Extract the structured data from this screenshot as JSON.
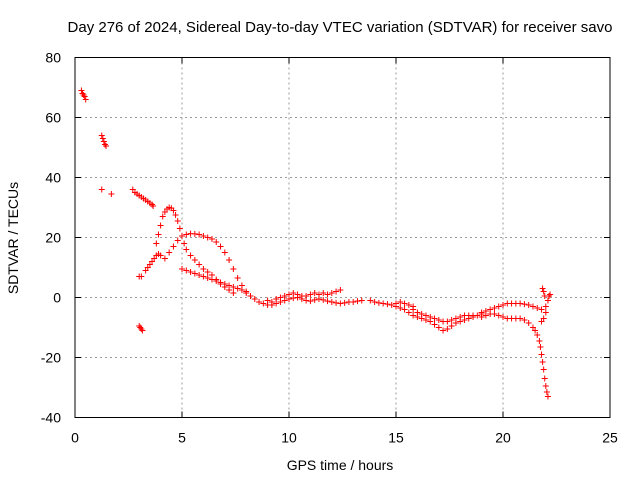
{
  "chart_data": {
    "type": "scatter",
    "title": "Day 276 of 2024, Sidereal Day-to-day VTEC variation (SDTVAR) for receiver savo",
    "xlabel": "GPS time / hours",
    "ylabel": "SDTVAR / TECUs",
    "xlim": [
      0,
      25
    ],
    "ylim": [
      -40,
      80
    ],
    "xticks": [
      0,
      5,
      10,
      15,
      20,
      25
    ],
    "yticks": [
      -40,
      -20,
      0,
      20,
      40,
      60,
      80
    ],
    "xtick_labels": [
      "0",
      "5",
      "10",
      "15",
      "20",
      "25"
    ],
    "ytick_labels": [
      "-40",
      "-20",
      "0",
      "20",
      "40",
      "60",
      "80"
    ],
    "grid": true,
    "marker": "+",
    "color": "#ff0000",
    "series": [
      {
        "name": "SDTVAR",
        "points": [
          [
            0.3,
            69.0
          ],
          [
            0.35,
            68.0
          ],
          [
            0.4,
            67.5
          ],
          [
            0.45,
            67.0
          ],
          [
            0.5,
            66.0
          ],
          [
            1.25,
            54.0
          ],
          [
            1.3,
            53.0
          ],
          [
            1.35,
            52.0
          ],
          [
            1.4,
            51.0
          ],
          [
            1.45,
            50.5
          ],
          [
            1.25,
            36.0
          ],
          [
            1.7,
            34.5
          ],
          [
            2.7,
            36.0
          ],
          [
            2.8,
            35.0
          ],
          [
            2.9,
            34.5
          ],
          [
            3.0,
            34.0
          ],
          [
            3.1,
            33.5
          ],
          [
            3.2,
            33.0
          ],
          [
            3.3,
            32.5
          ],
          [
            3.4,
            32.0
          ],
          [
            3.5,
            31.5
          ],
          [
            3.6,
            31.0
          ],
          [
            3.65,
            30.5
          ],
          [
            3.0,
            7.0
          ],
          [
            3.1,
            7.0
          ],
          [
            3.0,
            -9.5
          ],
          [
            3.05,
            -10.0
          ],
          [
            3.1,
            -10.5
          ],
          [
            3.15,
            -11.0
          ],
          [
            3.3,
            9.0
          ],
          [
            3.4,
            10.0
          ],
          [
            3.5,
            11.0
          ],
          [
            3.6,
            12.0
          ],
          [
            3.7,
            13.0
          ],
          [
            3.8,
            14.0
          ],
          [
            3.9,
            14.5
          ],
          [
            4.0,
            14.0
          ],
          [
            3.8,
            18.0
          ],
          [
            3.9,
            21.0
          ],
          [
            4.0,
            24.0
          ],
          [
            4.1,
            27.0
          ],
          [
            4.2,
            28.5
          ],
          [
            4.3,
            29.5
          ],
          [
            4.4,
            30.0
          ],
          [
            4.5,
            29.8
          ],
          [
            4.6,
            29.0
          ],
          [
            4.7,
            27.5
          ],
          [
            4.8,
            25.5
          ],
          [
            4.9,
            23.0
          ],
          [
            5.0,
            20.5
          ],
          [
            5.1,
            18.0
          ],
          [
            5.2,
            16.0
          ],
          [
            5.4,
            14.0
          ],
          [
            5.6,
            12.5
          ],
          [
            5.8,
            11.0
          ],
          [
            6.0,
            9.5
          ],
          [
            6.2,
            8.5
          ],
          [
            6.4,
            7.5
          ],
          [
            6.6,
            6.0
          ],
          [
            6.8,
            4.5
          ],
          [
            7.0,
            3.5
          ],
          [
            7.2,
            2.5
          ],
          [
            7.4,
            1.5
          ],
          [
            4.2,
            13.0
          ],
          [
            4.4,
            15.0
          ],
          [
            4.6,
            17.0
          ],
          [
            4.8,
            19.0
          ],
          [
            5.0,
            20.5
          ],
          [
            5.2,
            21.0
          ],
          [
            5.4,
            21.3
          ],
          [
            5.6,
            21.2
          ],
          [
            5.8,
            21.0
          ],
          [
            6.0,
            20.5
          ],
          [
            6.2,
            20.0
          ],
          [
            6.4,
            19.5
          ],
          [
            6.6,
            18.5
          ],
          [
            6.8,
            17.0
          ],
          [
            7.0,
            15.0
          ],
          [
            7.2,
            12.5
          ],
          [
            7.4,
            9.5
          ],
          [
            7.6,
            6.5
          ],
          [
            7.8,
            4.0
          ],
          [
            8.0,
            2.0
          ],
          [
            8.2,
            0.5
          ],
          [
            5.0,
            9.5
          ],
          [
            5.2,
            9.0
          ],
          [
            5.4,
            8.5
          ],
          [
            5.6,
            8.0
          ],
          [
            5.8,
            7.5
          ],
          [
            6.0,
            7.0
          ],
          [
            6.2,
            6.5
          ],
          [
            6.4,
            6.0
          ],
          [
            6.6,
            5.5
          ],
          [
            6.8,
            5.0
          ],
          [
            7.0,
            4.5
          ],
          [
            7.2,
            4.0
          ],
          [
            7.4,
            3.5
          ],
          [
            7.6,
            3.0
          ],
          [
            7.8,
            2.5
          ],
          [
            8.0,
            1.5
          ],
          [
            8.2,
            0.5
          ],
          [
            8.4,
            -0.5
          ],
          [
            8.6,
            -1.5
          ],
          [
            8.8,
            -2.0
          ],
          [
            9.0,
            -2.5
          ],
          [
            9.2,
            -2.5
          ],
          [
            9.4,
            -2.0
          ],
          [
            9.6,
            -1.5
          ],
          [
            9.8,
            -1.0
          ],
          [
            10.0,
            -0.5
          ],
          [
            10.2,
            -0.2
          ],
          [
            10.4,
            0.0
          ],
          [
            10.6,
            -0.5
          ],
          [
            10.8,
            -1.0
          ],
          [
            11.0,
            -1.2
          ],
          [
            11.2,
            -0.8
          ],
          [
            11.4,
            -0.5
          ],
          [
            11.6,
            -0.8
          ],
          [
            11.8,
            -1.2
          ],
          [
            12.0,
            -1.5
          ],
          [
            12.2,
            -1.8
          ],
          [
            12.4,
            -2.0
          ],
          [
            12.6,
            -1.8
          ],
          [
            12.8,
            -1.5
          ],
          [
            13.0,
            -1.5
          ],
          [
            13.2,
            -1.2
          ],
          [
            13.4,
            -1.0
          ],
          [
            9.0,
            -1.0
          ],
          [
            9.2,
            -1.5
          ],
          [
            9.4,
            -0.5
          ],
          [
            9.6,
            0.0
          ],
          [
            9.8,
            0.5
          ],
          [
            10.0,
            1.0
          ],
          [
            10.2,
            1.5
          ],
          [
            10.4,
            1.0
          ],
          [
            10.6,
            0.5
          ],
          [
            10.8,
            0.5
          ],
          [
            11.0,
            1.0
          ],
          [
            11.2,
            1.5
          ],
          [
            11.4,
            1.0
          ],
          [
            11.6,
            1.5
          ],
          [
            11.8,
            1.0
          ],
          [
            12.0,
            1.5
          ],
          [
            12.2,
            2.0
          ],
          [
            12.4,
            2.5
          ],
          [
            13.8,
            -1.0
          ],
          [
            14.0,
            -1.5
          ],
          [
            14.2,
            -1.8
          ],
          [
            14.4,
            -2.0
          ],
          [
            14.6,
            -2.2
          ],
          [
            14.8,
            -2.5
          ],
          [
            15.0,
            -2.0
          ],
          [
            15.2,
            -1.5
          ],
          [
            15.4,
            -2.0
          ],
          [
            15.6,
            -2.5
          ],
          [
            15.8,
            -3.0
          ],
          [
            15.0,
            -3.0
          ],
          [
            15.2,
            -3.5
          ],
          [
            15.4,
            -4.0
          ],
          [
            15.6,
            -5.0
          ],
          [
            15.8,
            -6.0
          ],
          [
            16.0,
            -6.5
          ],
          [
            16.2,
            -7.0
          ],
          [
            16.4,
            -7.5
          ],
          [
            16.6,
            -8.0
          ],
          [
            16.8,
            -9.0
          ],
          [
            17.0,
            -10.0
          ],
          [
            17.2,
            -11.0
          ],
          [
            17.4,
            -10.5
          ],
          [
            17.6,
            -9.5
          ],
          [
            17.8,
            -8.5
          ],
          [
            18.0,
            -8.0
          ],
          [
            18.2,
            -7.5
          ],
          [
            18.4,
            -7.0
          ],
          [
            18.6,
            -6.5
          ],
          [
            18.8,
            -6.0
          ],
          [
            19.0,
            -5.5
          ],
          [
            15.8,
            -4.0
          ],
          [
            16.0,
            -5.0
          ],
          [
            16.2,
            -5.5
          ],
          [
            16.4,
            -6.0
          ],
          [
            16.6,
            -6.5
          ],
          [
            16.8,
            -7.0
          ],
          [
            17.0,
            -7.5
          ],
          [
            17.2,
            -8.0
          ],
          [
            17.4,
            -8.0
          ],
          [
            17.6,
            -7.5
          ],
          [
            17.8,
            -7.0
          ],
          [
            18.0,
            -6.5
          ],
          [
            18.2,
            -6.0
          ],
          [
            18.4,
            -6.0
          ],
          [
            18.6,
            -6.0
          ],
          [
            19.0,
            -5.0
          ],
          [
            19.2,
            -4.5
          ],
          [
            19.4,
            -4.0
          ],
          [
            19.6,
            -3.5
          ],
          [
            19.8,
            -3.0
          ],
          [
            20.0,
            -2.5
          ],
          [
            20.2,
            -2.0
          ],
          [
            20.4,
            -2.0
          ],
          [
            20.6,
            -2.0
          ],
          [
            20.8,
            -2.0
          ],
          [
            21.0,
            -2.2
          ],
          [
            21.2,
            -2.5
          ],
          [
            21.4,
            -3.0
          ],
          [
            21.6,
            -3.5
          ],
          [
            21.8,
            -4.0
          ],
          [
            22.0,
            -3.0
          ],
          [
            22.1,
            -1.0
          ],
          [
            22.15,
            0.5
          ],
          [
            22.2,
            1.0
          ],
          [
            19.0,
            -6.5
          ],
          [
            19.2,
            -6.0
          ],
          [
            19.4,
            -5.5
          ],
          [
            19.6,
            -5.5
          ],
          [
            19.8,
            -6.0
          ],
          [
            20.0,
            -6.5
          ],
          [
            20.2,
            -7.0
          ],
          [
            20.4,
            -7.0
          ],
          [
            20.6,
            -7.0
          ],
          [
            20.8,
            -7.0
          ],
          [
            21.0,
            -7.5
          ],
          [
            21.2,
            -8.5
          ],
          [
            21.4,
            -10.0
          ],
          [
            21.5,
            -11.0
          ],
          [
            21.6,
            -12.5
          ],
          [
            21.7,
            -14.5
          ],
          [
            21.75,
            -16.5
          ],
          [
            21.8,
            -19.0
          ],
          [
            21.85,
            -21.5
          ],
          [
            21.9,
            -24.0
          ],
          [
            21.95,
            -27.0
          ],
          [
            22.0,
            -29.5
          ],
          [
            22.05,
            -31.5
          ],
          [
            22.1,
            -33.0
          ],
          [
            21.8,
            -8.0
          ],
          [
            21.9,
            -7.0
          ],
          [
            22.0,
            -5.0
          ],
          [
            21.95,
            0.5
          ],
          [
            21.9,
            2.0
          ],
          [
            21.85,
            3.0
          ]
        ]
      }
    ]
  }
}
